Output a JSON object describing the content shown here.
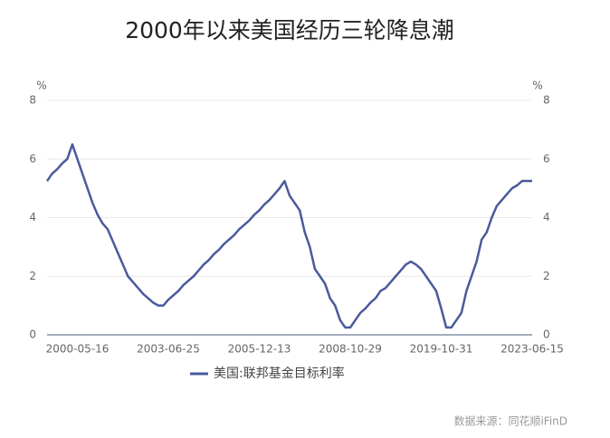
{
  "chart_data": {
    "type": "line",
    "title": "2000年以来美国经历三轮降息潮",
    "y_unit": "%",
    "y2_unit": "%",
    "categories": [
      null,
      null,
      null,
      null,
      null,
      null,
      "2000-05-16",
      null,
      null,
      null,
      null,
      null,
      null,
      null,
      null,
      null,
      null,
      null,
      null,
      null,
      null,
      null,
      null,
      null,
      "2003-06-25",
      null,
      null,
      null,
      null,
      null,
      null,
      null,
      null,
      null,
      null,
      null,
      null,
      null,
      null,
      null,
      null,
      null,
      "2005-12-13",
      null,
      null,
      null,
      null,
      null,
      null,
      null,
      null,
      null,
      null,
      null,
      null,
      null,
      null,
      null,
      null,
      null,
      "2008-10-29",
      null,
      null,
      null,
      null,
      null,
      null,
      null,
      null,
      null,
      null,
      null,
      null,
      null,
      null,
      null,
      null,
      null,
      "2019-10-31",
      null,
      null,
      null,
      null,
      null,
      null,
      null,
      null,
      null,
      null,
      null,
      null,
      null,
      null,
      null,
      null,
      null,
      "2023-06-15"
    ],
    "series": [
      {
        "name": "美国:联邦基金目标利率",
        "color": "#4a5a9c",
        "values": [
          5.25,
          5.5,
          5.65,
          5.85,
          6.0,
          6.5,
          6.0,
          5.5,
          5.0,
          4.5,
          4.1,
          3.8,
          3.6,
          3.2,
          2.8,
          2.4,
          2.0,
          1.8,
          1.6,
          1.4,
          1.25,
          1.1,
          1.0,
          1.0,
          1.2,
          1.35,
          1.5,
          1.7,
          1.85,
          2.0,
          2.2,
          2.4,
          2.55,
          2.75,
          2.9,
          3.1,
          3.25,
          3.4,
          3.6,
          3.75,
          3.9,
          4.1,
          4.25,
          4.45,
          4.6,
          4.8,
          5.0,
          5.25,
          4.75,
          4.5,
          4.25,
          3.5,
          3.0,
          2.25,
          2.0,
          1.75,
          1.25,
          1.0,
          0.5,
          0.25,
          0.25,
          0.5,
          0.75,
          0.9,
          1.1,
          1.25,
          1.5,
          1.6,
          1.8,
          2.0,
          2.2,
          2.4,
          2.5,
          2.4,
          2.25,
          2.0,
          1.75,
          1.5,
          0.9,
          0.25,
          0.25,
          0.5,
          0.75,
          1.5,
          2.0,
          2.5,
          3.25,
          3.5,
          4.0,
          4.4,
          4.6,
          4.8,
          5.0,
          5.1,
          5.25,
          5.25,
          5.25
        ]
      }
    ],
    "ylim": [
      0,
      8
    ],
    "yticks": [
      0,
      2,
      4,
      6,
      8
    ],
    "y2lim": [
      0,
      8
    ],
    "y2ticks": [
      0,
      2,
      4,
      6,
      8
    ],
    "grid": true,
    "legend": "bottom",
    "source": "数据来源：同花顺iFinD"
  }
}
